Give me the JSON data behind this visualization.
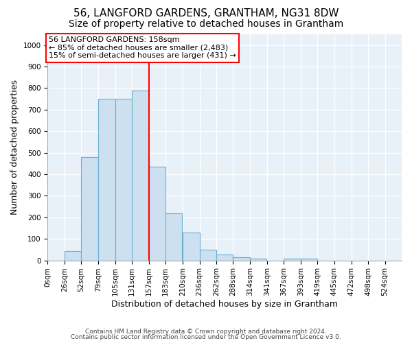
{
  "title": "56, LANGFORD GARDENS, GRANTHAM, NG31 8DW",
  "subtitle": "Size of property relative to detached houses in Grantham",
  "xlabel": "Distribution of detached houses by size in Grantham",
  "ylabel": "Number of detached properties",
  "bar_labels": [
    "0sqm",
    "26sqm",
    "52sqm",
    "79sqm",
    "105sqm",
    "131sqm",
    "157sqm",
    "183sqm",
    "210sqm",
    "236sqm",
    "262sqm",
    "288sqm",
    "314sqm",
    "341sqm",
    "367sqm",
    "393sqm",
    "419sqm",
    "445sqm",
    "472sqm",
    "498sqm",
    "524sqm"
  ],
  "bar_values": [
    0,
    43,
    480,
    750,
    750,
    790,
    435,
    218,
    130,
    50,
    28,
    14,
    8,
    0,
    8,
    8,
    0,
    0,
    0,
    0,
    0
  ],
  "bar_color": "#cce0f0",
  "bar_edge_color": "#6baed6",
  "vline_x_index": 6,
  "annotation_line1": "56 LANGFORD GARDENS: 158sqm",
  "annotation_line2": "← 85% of detached houses are smaller (2,483)",
  "annotation_line3": "15% of semi-detached houses are larger (431) →",
  "annotation_box_facecolor": "white",
  "annotation_box_edgecolor": "red",
  "vline_color": "red",
  "ylim": [
    0,
    1050
  ],
  "yticks": [
    0,
    100,
    200,
    300,
    400,
    500,
    600,
    700,
    800,
    900,
    1000
  ],
  "footer_line1": "Contains HM Land Registry data © Crown copyright and database right 2024.",
  "footer_line2": "Contains public sector information licensed under the Open Government Licence v3.0.",
  "bg_color": "#ffffff",
  "plot_bg_color": "#e8f0f8",
  "grid_color": "#ffffff",
  "title_fontsize": 11,
  "subtitle_fontsize": 10,
  "axis_label_fontsize": 9,
  "tick_fontsize": 7.5,
  "footer_fontsize": 6.5
}
